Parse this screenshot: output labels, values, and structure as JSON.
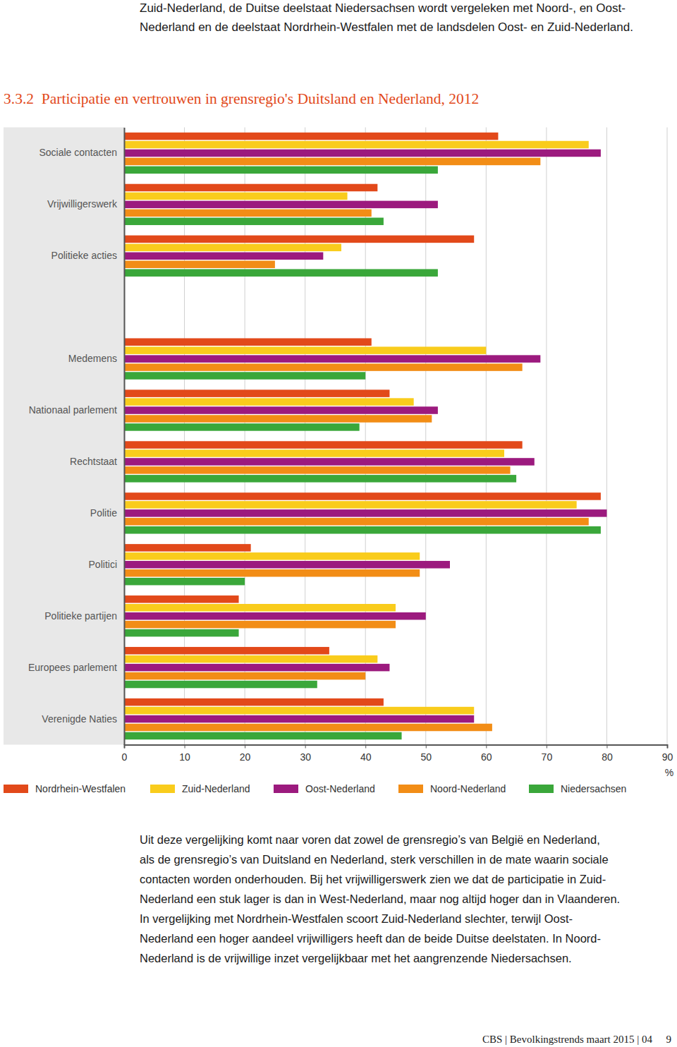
{
  "header": {
    "lines": [
      "Zuid-Nederland, de Duitse deelstaat Niedersachsen wordt vergeleken met Noord-, en Oost-",
      "Nederland en de deelstaat Nordrhein-Westfalen met de landsdelen Oost- en Zuid-Nederland."
    ]
  },
  "chart_data": {
    "type": "bar",
    "orientation": "horizontal",
    "title": "3.3.2  Participatie en vertrouwen in grensregio's Duitsland en Nederland, 2012",
    "categories": [
      "Sociale contacten",
      "Vrijwilligerswerk",
      "Politieke acties",
      null,
      "Medemens",
      "Nationaal parlement",
      "Rechtstaat",
      "Politie",
      "Politici",
      "Politieke partijen",
      "Europees parlement",
      "Verenigde Naties"
    ],
    "series": [
      {
        "name": "Nordrhein-Westfalen",
        "color": "#e2491a",
        "values": [
          62,
          42,
          58,
          null,
          41,
          44,
          66,
          79,
          21,
          19,
          34,
          43
        ]
      },
      {
        "name": "Zuid-Nederland",
        "color": "#f9cc1c",
        "values": [
          77,
          37,
          36,
          null,
          60,
          48,
          63,
          75,
          49,
          45,
          42,
          58
        ]
      },
      {
        "name": "Oost-Nederland",
        "color": "#9c1a7e",
        "values": [
          79,
          52,
          33,
          null,
          69,
          52,
          68,
          80,
          54,
          50,
          44,
          58
        ]
      },
      {
        "name": "Noord-Nederland",
        "color": "#f28d16",
        "values": [
          69,
          41,
          25,
          null,
          66,
          51,
          64,
          77,
          49,
          45,
          40,
          61
        ]
      },
      {
        "name": "Niedersachsen",
        "color": "#3aa73a",
        "values": [
          52,
          43,
          52,
          null,
          40,
          39,
          65,
          79,
          20,
          19,
          32,
          46
        ]
      }
    ],
    "xlim": [
      0,
      90
    ],
    "xticks": [
      0,
      10,
      20,
      30,
      40,
      50,
      60,
      70,
      80,
      90
    ],
    "xlabel": "%",
    "grid": true,
    "legend": "bottom"
  },
  "body": {
    "lines": [
      "Uit deze vergelijking komt naar voren dat zowel de grensregio’s van België en Nederland,",
      "als de grensregio’s van Duitsland en Nederland, sterk verschillen in de mate waarin sociale",
      "contacten worden onderhouden. Bij het vrijwilligerswerk zien we dat de participatie in Zuid-",
      "Nederland een stuk lager is dan in West-Nederland, maar nog altijd hoger dan in Vlaanderen.",
      "In vergelijking met Nordrhein-Westfalen scoort Zuid-Nederland slechter, terwijl Oost-",
      "Nederland een hoger aandeel vrijwilligers heeft dan de beide Duitse deelstaten. In Noord-",
      "Nederland is de vrijwillige inzet vergelijkbaar met het aangrenzende Niedersachsen."
    ]
  },
  "footer": {
    "text": "CBS | Bevolkingstrends maart 2015 | 04",
    "page": "9"
  }
}
